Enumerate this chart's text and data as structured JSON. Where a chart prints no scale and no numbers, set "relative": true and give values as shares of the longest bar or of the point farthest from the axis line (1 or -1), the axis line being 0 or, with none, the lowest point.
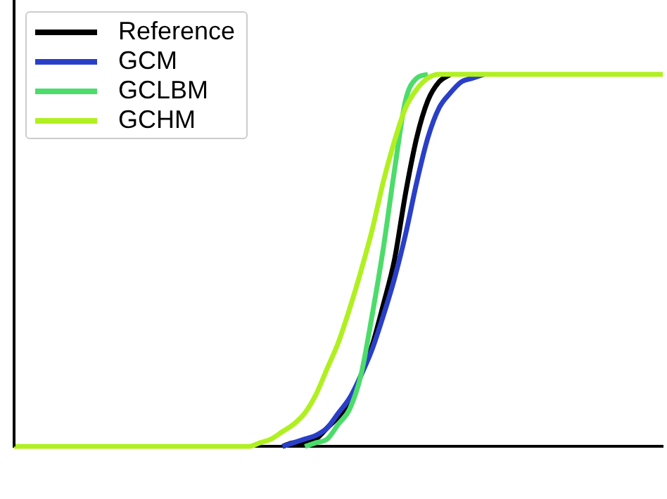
{
  "chart_data": {
    "type": "line",
    "relative": true,
    "legend": "top left",
    "grid": false,
    "marker": "none",
    "line_style": "solid",
    "categories": [
      null,
      null,
      null,
      null,
      null,
      null,
      null,
      null,
      null,
      null,
      null,
      null,
      null,
      null,
      null,
      null,
      null,
      null,
      null,
      null,
      null,
      null,
      null,
      null,
      null,
      null,
      null,
      null,
      null,
      null,
      null,
      null,
      null,
      null,
      null,
      null,
      null,
      null,
      null,
      null,
      null,
      null,
      null,
      null,
      null,
      null,
      null,
      null,
      null,
      null,
      null,
      null,
      null,
      null,
      null,
      null,
      null,
      null,
      null
    ],
    "series": [
      {
        "name": "Reference",
        "color": "#000000",
        "values": [
          null,
          null,
          null,
          null,
          null,
          null,
          null,
          null,
          null,
          null,
          null,
          null,
          null,
          null,
          null,
          null,
          null,
          null,
          null,
          null,
          null,
          null,
          null,
          null,
          0,
          0.01,
          0.01,
          0.02,
          0.05,
          0.08,
          0.12,
          0.19,
          0.27,
          0.38,
          0.5,
          0.68,
          0.83,
          0.93,
          0.98,
          1,
          null,
          null,
          null,
          null,
          null,
          null,
          null,
          null,
          null,
          null,
          null,
          null,
          null,
          null,
          null,
          null,
          null,
          null,
          null
        ]
      },
      {
        "name": "GCM",
        "color": "#2a3fc8",
        "values": [
          null,
          null,
          null,
          null,
          null,
          null,
          null,
          null,
          null,
          null,
          null,
          null,
          null,
          null,
          null,
          null,
          null,
          null,
          null,
          null,
          null,
          null,
          null,
          null,
          0,
          0.01,
          0.02,
          0.03,
          0.05,
          0.09,
          0.13,
          0.19,
          0.26,
          0.35,
          0.45,
          0.57,
          0.71,
          0.83,
          0.91,
          0.95,
          0.98,
          0.99,
          1,
          null,
          null,
          null,
          null,
          null,
          null,
          null,
          null,
          null,
          null,
          null,
          null,
          null,
          null,
          null,
          null
        ]
      },
      {
        "name": "GCLBM",
        "color": "#4cdc6a",
        "values": [
          null,
          null,
          null,
          null,
          null,
          null,
          null,
          null,
          null,
          null,
          null,
          null,
          null,
          null,
          null,
          null,
          null,
          null,
          null,
          null,
          null,
          null,
          null,
          null,
          null,
          null,
          0,
          0.01,
          0.02,
          0.06,
          0.1,
          0.19,
          0.35,
          0.53,
          0.74,
          0.93,
          0.99,
          1,
          null,
          null,
          null,
          null,
          null,
          null,
          null,
          null,
          null,
          null,
          null,
          null,
          null,
          null,
          null,
          null,
          null,
          null,
          null,
          null,
          null
        ]
      },
      {
        "name": "GCHM",
        "color": "#b0f020",
        "values": [
          0,
          0,
          0,
          0,
          0,
          0,
          0,
          0,
          0,
          0,
          0,
          0,
          0,
          0,
          0,
          0,
          0,
          0,
          0,
          0,
          0,
          0,
          0.01,
          0.02,
          0.04,
          0.06,
          0.09,
          0.14,
          0.21,
          0.28,
          0.37,
          0.47,
          0.58,
          0.71,
          0.82,
          0.91,
          0.96,
          0.99,
          1,
          1,
          1,
          1,
          1,
          1,
          1,
          1,
          1,
          1,
          1,
          1,
          1,
          1,
          1,
          1,
          1,
          1,
          1,
          1,
          1
        ]
      }
    ]
  }
}
